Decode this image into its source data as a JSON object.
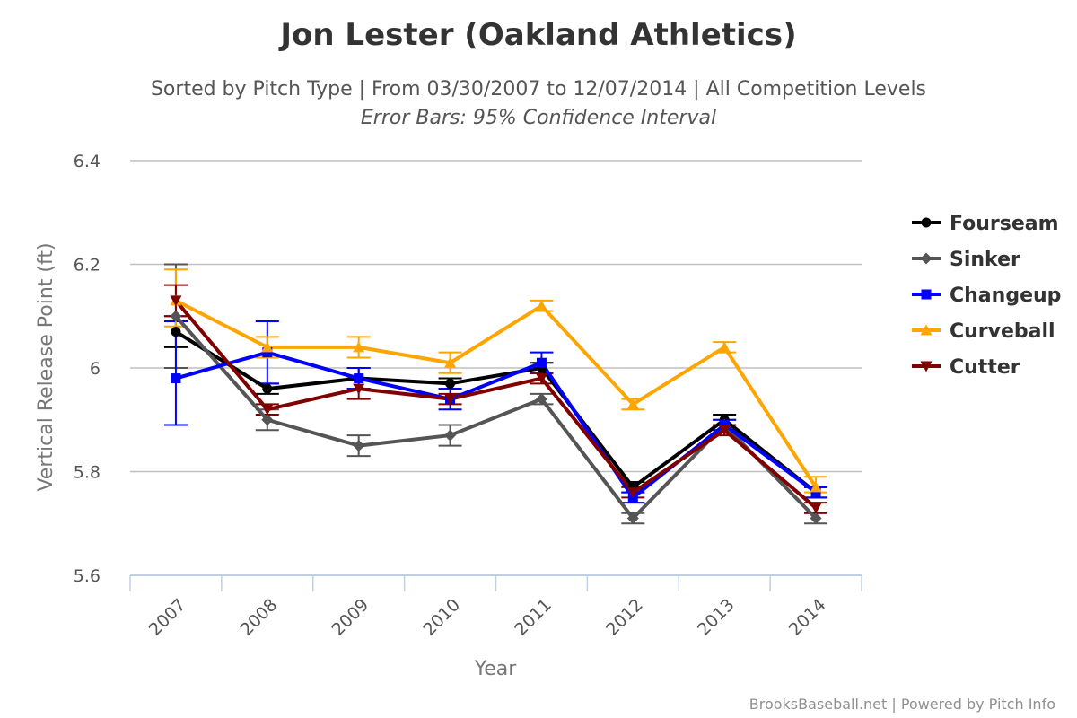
{
  "chart_data": {
    "type": "line",
    "title": "Jon Lester (Oakland Athletics)",
    "subtitle": "Sorted by Pitch Type | From 03/30/2007 to 12/07/2014 | All Competition Levels",
    "subtitle2": "Error Bars: 95% Confidence Interval",
    "xlabel": "Year",
    "ylabel": "Vertical Release Point (ft)",
    "categories": [
      "2007",
      "2008",
      "2009",
      "2010",
      "2011",
      "2012",
      "2013",
      "2014"
    ],
    "ylim": [
      5.6,
      6.4
    ],
    "yticks": [
      5.6,
      5.8,
      6,
      6.2,
      6.4
    ],
    "ytick_labels": [
      "5.6",
      "5.8",
      "6",
      "6.2",
      "6.4"
    ],
    "grid": true,
    "legend_position": "right",
    "series": [
      {
        "name": "Fourseam",
        "color": "#000000",
        "marker": "circle",
        "values": [
          6.07,
          5.96,
          5.98,
          5.97,
          6.0,
          5.77,
          5.9,
          5.76
        ],
        "err_low": [
          6.04,
          5.95,
          5.96,
          5.96,
          5.99,
          5.76,
          5.89,
          5.75
        ],
        "err_high": [
          6.1,
          5.97,
          6.0,
          5.98,
          6.01,
          5.78,
          5.91,
          5.77
        ]
      },
      {
        "name": "Sinker",
        "color": "#555555",
        "marker": "diamond",
        "values": [
          6.1,
          5.9,
          5.85,
          5.87,
          5.94,
          5.71,
          5.89,
          5.71
        ],
        "err_low": [
          6.0,
          5.88,
          5.83,
          5.85,
          5.93,
          5.7,
          5.88,
          5.7
        ],
        "err_high": [
          6.2,
          5.92,
          5.87,
          5.89,
          5.95,
          5.72,
          5.9,
          5.72
        ]
      },
      {
        "name": "Changeup",
        "color": "#0000ff",
        "marker": "square",
        "values": [
          5.98,
          6.03,
          5.98,
          5.94,
          6.01,
          5.75,
          5.89,
          5.76
        ],
        "err_low": [
          5.89,
          5.97,
          5.96,
          5.92,
          5.99,
          5.74,
          5.88,
          5.75
        ],
        "err_high": [
          6.09,
          6.09,
          6.0,
          5.96,
          6.03,
          5.76,
          5.9,
          5.77
        ]
      },
      {
        "name": "Curveball",
        "color": "#ffa500",
        "marker": "triangle",
        "values": [
          6.13,
          6.04,
          6.04,
          6.01,
          6.12,
          5.93,
          6.04,
          5.77
        ],
        "err_low": [
          6.08,
          6.02,
          6.02,
          5.99,
          6.11,
          5.92,
          6.03,
          5.76
        ],
        "err_high": [
          6.19,
          6.06,
          6.06,
          6.03,
          6.13,
          5.94,
          6.05,
          5.79
        ]
      },
      {
        "name": "Cutter",
        "color": "#800000",
        "marker": "triangle-down",
        "values": [
          6.13,
          5.92,
          5.96,
          5.94,
          5.98,
          5.76,
          5.88,
          5.73
        ],
        "err_low": [
          6.1,
          5.91,
          5.94,
          5.93,
          5.97,
          5.75,
          5.87,
          5.72
        ],
        "err_high": [
          6.16,
          5.93,
          5.98,
          5.95,
          5.99,
          5.77,
          5.89,
          5.74
        ]
      }
    ]
  },
  "credits": "BrooksBaseball.net | Powered by Pitch Info"
}
